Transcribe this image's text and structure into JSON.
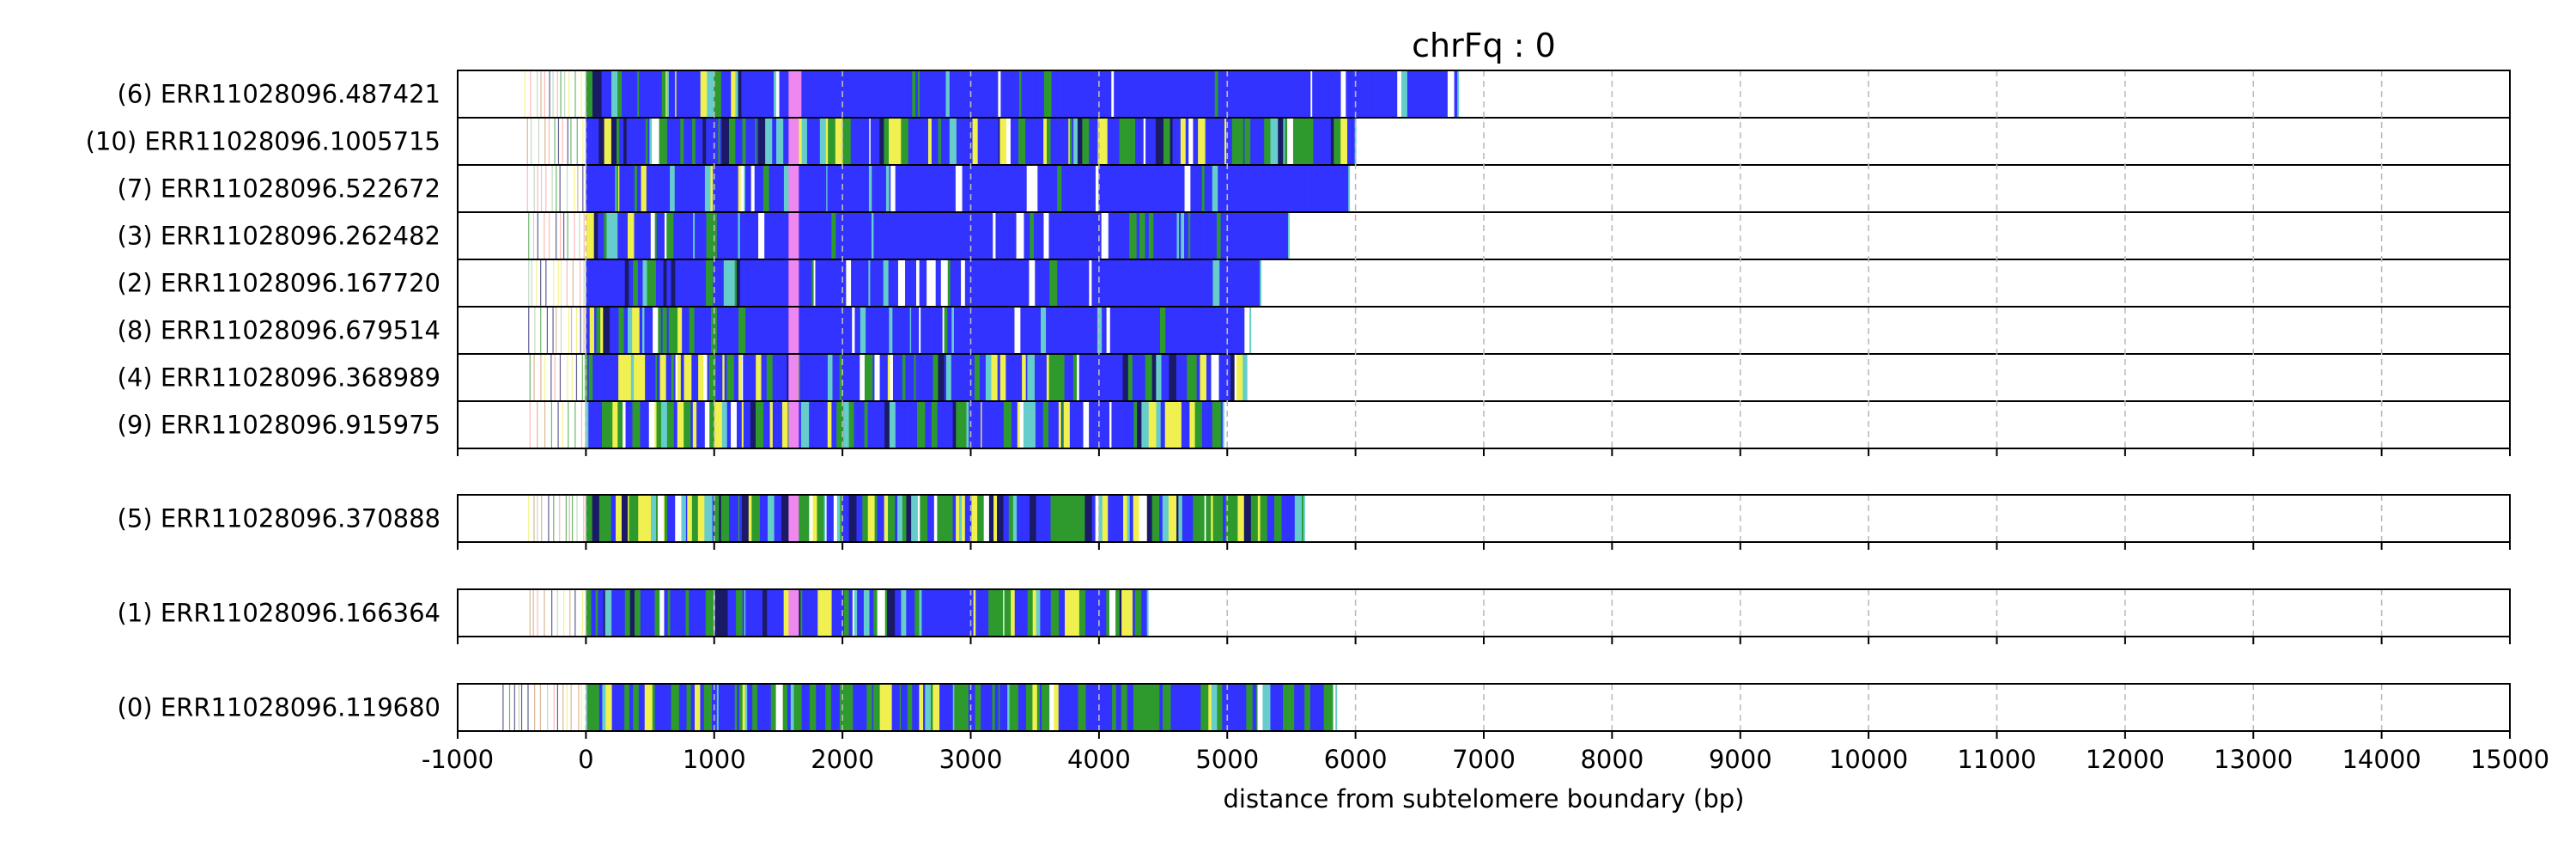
{
  "chart_data": {
    "type": "bar",
    "title": "chrFq : 0",
    "xlabel": "distance from subtelomere boundary (bp)",
    "ylabel": "",
    "xlim": [
      -1000,
      15000
    ],
    "xticks": [
      "-1000",
      "0",
      "1000",
      "2000",
      "3000",
      "4000",
      "5000",
      "6000",
      "7000",
      "8000",
      "9000",
      "10000",
      "11000",
      "12000",
      "13000",
      "14000",
      "15000"
    ],
    "grid": "vertical dashed",
    "groups": [
      {
        "reads": [
          {
            "label": "(6) ERR11028096.487421",
            "start": -480,
            "end": 6800,
            "composition": "mostly blue",
            "pink_block": [
              1580,
              1680
            ]
          },
          {
            "label": "(10) ERR11028096.1005715",
            "start": -460,
            "end": 6000,
            "composition": "blue with green/yellow",
            "pink_block": [
              1580,
              1660
            ]
          },
          {
            "label": "(7) ERR11028096.522672",
            "start": -460,
            "end": 5950,
            "composition": "mostly blue",
            "pink_block": [
              1580,
              1660
            ]
          },
          {
            "label": "(3) ERR11028096.262482",
            "start": -450,
            "end": 5480,
            "composition": "mostly blue",
            "pink_block": [
              1580,
              1660
            ]
          },
          {
            "label": "(2) ERR11028096.167720",
            "start": -450,
            "end": 5260,
            "composition": "mostly blue",
            "pink_block": [
              1580,
              1660
            ]
          },
          {
            "label": "(8) ERR11028096.679514",
            "start": -450,
            "end": 5180,
            "composition": "mostly blue",
            "pink_block": [
              1580,
              1660
            ]
          },
          {
            "label": "(4) ERR11028096.368989",
            "start": -440,
            "end": 5150,
            "composition": "blue with green/yellow",
            "pink_block": [
              1580,
              1660
            ]
          },
          {
            "label": "(9) ERR11028096.915975",
            "start": -440,
            "end": 4970,
            "composition": "blue with green/yellow",
            "pink_block": [
              1580,
              1660
            ]
          }
        ]
      },
      {
        "reads": [
          {
            "label": "(5) ERR11028096.370888",
            "start": -450,
            "end": 5600,
            "composition": "green and yellow dominant",
            "pink_block": [
              1580,
              1660
            ]
          }
        ]
      },
      {
        "reads": [
          {
            "label": "(1) ERR11028096.166364",
            "start": -440,
            "end": 4380,
            "composition": "blue with green/yellow",
            "pink_block": [
              1580,
              1660
            ]
          }
        ]
      },
      {
        "reads": [
          {
            "label": "(0) ERR11028096.119680",
            "start": -650,
            "end": 5850,
            "composition": "blue and green",
            "pink_block": null
          }
        ]
      }
    ],
    "colors": {
      "blue": "#3333ff",
      "green": "#2e9a2e",
      "yellow": "#f0f050",
      "pink": "#ee88ee",
      "cyan": "#66cccc",
      "navy": "#1a1a66",
      "white": "#ffffff"
    }
  }
}
